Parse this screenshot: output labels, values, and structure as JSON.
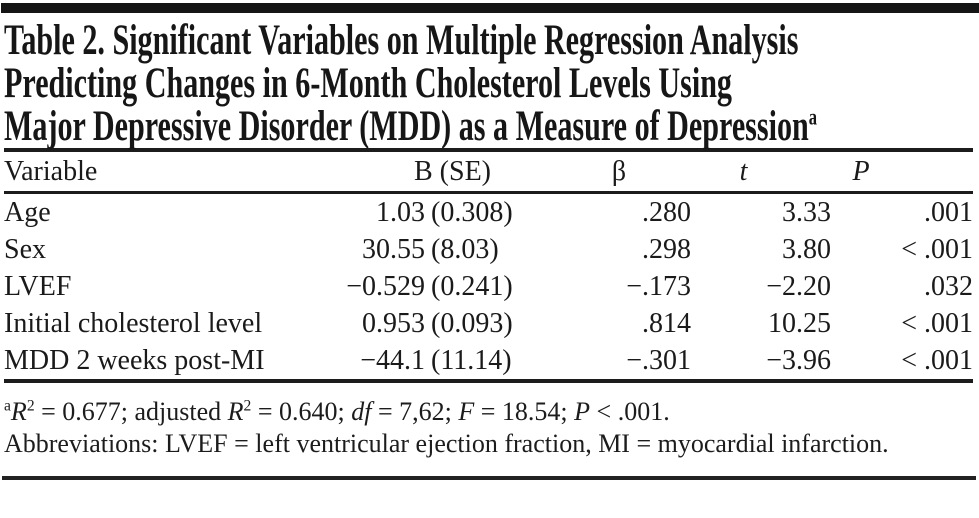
{
  "colors": {
    "background": "#ffffff",
    "text": "#1a1a1a",
    "rule": "#1c1c1c",
    "top_bar": "#151515"
  },
  "title": {
    "lines": [
      "Table 2. Significant Variables on Multiple Regression Analysis",
      "Predicting Changes in 6-Month Cholesterol Levels Using",
      "Major Depressive Disorder (MDD) as a Measure of Depression"
    ],
    "superscript": "a"
  },
  "table": {
    "headers": {
      "variable": "Variable",
      "b_se": "B (SE)",
      "beta": "β",
      "t": "t",
      "p": "P"
    },
    "rows": [
      {
        "variable": "Age",
        "b": "1.03",
        "se": "(0.308)",
        "beta": ".280",
        "t": "3.33",
        "p": ".001"
      },
      {
        "variable": "Sex",
        "b": "30.55",
        "se": "(8.03)",
        "beta": ".298",
        "t": "3.80",
        "p": "< .001"
      },
      {
        "variable": "LVEF",
        "b": "−0.529",
        "se": "(0.241)",
        "beta": "−.173",
        "t": "−2.20",
        "p": ".032"
      },
      {
        "variable": "Initial cholesterol level",
        "b": "0.953",
        "se": "(0.093)",
        "beta": ".814",
        "t": "10.25",
        "p": "< .001"
      },
      {
        "variable": "MDD 2 weeks post-MI",
        "b": "−44.1",
        "se": "(11.14)",
        "beta": "−.301",
        "t": "−3.96",
        "p": "< .001"
      }
    ]
  },
  "footnotes": {
    "stats": {
      "segments": [
        {
          "text": "a",
          "fmt": "sup"
        },
        {
          "text": "R",
          "fmt": "i"
        },
        {
          "text": "2",
          "fmt": "sup"
        },
        {
          "text": " = 0.677; adjusted ",
          "fmt": ""
        },
        {
          "text": "R",
          "fmt": "i"
        },
        {
          "text": "2",
          "fmt": "sup"
        },
        {
          "text": " = 0.640; ",
          "fmt": ""
        },
        {
          "text": "df",
          "fmt": "i"
        },
        {
          "text": " = 7,62; ",
          "fmt": ""
        },
        {
          "text": "F",
          "fmt": "i"
        },
        {
          "text": " = 18.54; ",
          "fmt": ""
        },
        {
          "text": "P",
          "fmt": "i"
        },
        {
          "text": " < .001.",
          "fmt": ""
        }
      ]
    },
    "abbreviations": "Abbreviations: LVEF = left ventricular ejection fraction, MI = myocardial infarction."
  }
}
